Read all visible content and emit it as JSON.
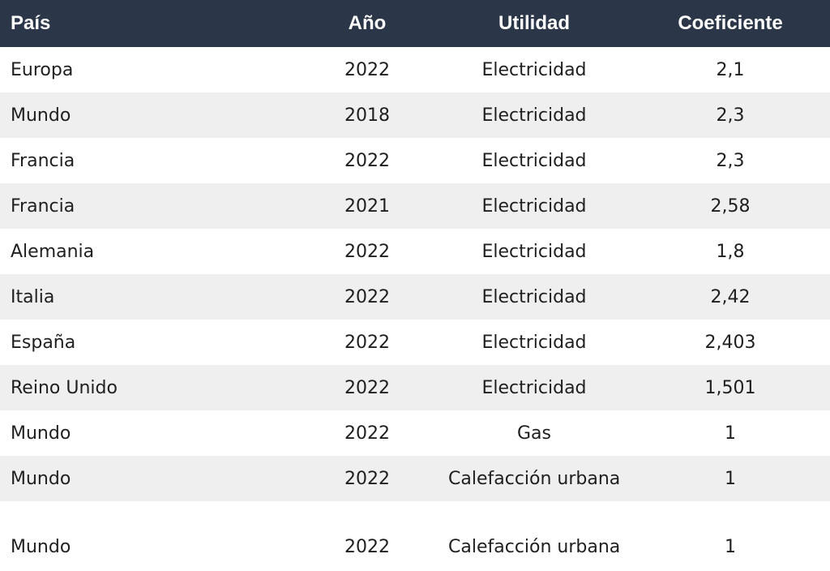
{
  "table": {
    "headers": {
      "country": "País",
      "year": "Año",
      "utility": "Utilidad",
      "coefficient": "Coeficiente"
    },
    "rows": [
      {
        "country": "Europa",
        "year": "2022",
        "utility": "Electricidad",
        "coefficient": "2,1"
      },
      {
        "country": "Mundo",
        "year": "2018",
        "utility": "Electricidad",
        "coefficient": "2,3"
      },
      {
        "country": "Francia",
        "year": "2022",
        "utility": "Electricidad",
        "coefficient": "2,3"
      },
      {
        "country": "Francia",
        "year": "2021",
        "utility": "Electricidad",
        "coefficient": "2,58"
      },
      {
        "country": "Alemania",
        "year": "2022",
        "utility": "Electricidad",
        "coefficient": "1,8"
      },
      {
        "country": "Italia",
        "year": "2022",
        "utility": "Electricidad",
        "coefficient": "2,42"
      },
      {
        "country": "España",
        "year": "2022",
        "utility": "Electricidad",
        "coefficient": "2,403"
      },
      {
        "country": "Reino Unido",
        "year": "2022",
        "utility": "Electricidad",
        "coefficient": "1,501"
      },
      {
        "country": "Mundo",
        "year": "2022",
        "utility": "Gas",
        "coefficient": "1"
      },
      {
        "country": "Mundo",
        "year": "2022",
        "utility": "Calefacción urbana",
        "coefficient": "1"
      },
      {
        "country": "Mundo",
        "year": "2022",
        "utility": "Calefacción urbana",
        "coefficient": "1"
      }
    ]
  },
  "colors": {
    "header_background": "#2b3648",
    "header_text": "#ffffff",
    "stripe_background": "#efefef"
  }
}
